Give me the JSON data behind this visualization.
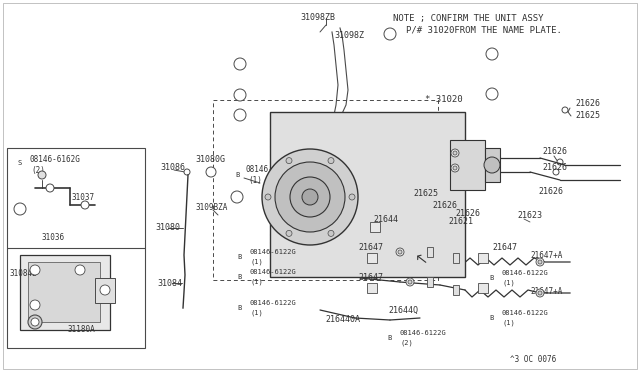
{
  "bg": "white",
  "lc": "#4a4a4a",
  "lc2": "#333333",
  "note1": "NOTE ; CONFIRM THE UNIT ASSY",
  "note2": "P/# 31020FROM THE NAME PLATE.",
  "footer": "^3 OC 0076",
  "fig_w": 6.4,
  "fig_h": 3.72,
  "dpi": 100
}
